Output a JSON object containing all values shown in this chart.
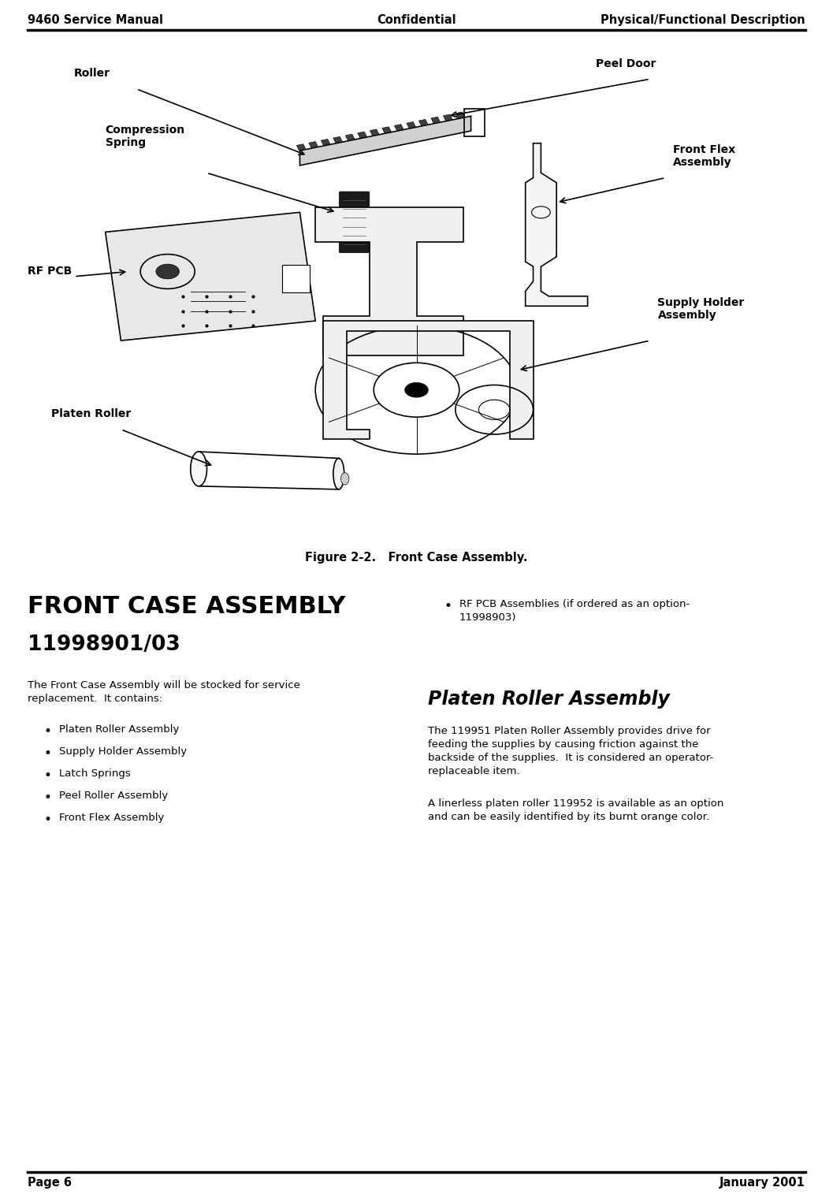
{
  "header_left": "9460 Service Manual",
  "header_center": "Confidential",
  "header_right": "Physical/Functional Description",
  "footer_left": "Page 6",
  "footer_right": "January 2001",
  "figure_caption": "Figure 2-2.   Front Case Assembly.",
  "section_title_line1": "FRONT CASE ASSEMBLY",
  "section_title_line2": "11998901/03",
  "intro_text": "The Front Case Assembly will be stocked for service\nreplacement.  It contains:",
  "bullet_items_left": [
    "Platen Roller Assembly",
    "Supply Holder Assembly",
    "Latch Springs",
    "Peel Roller Assembly",
    "Front Flex Assembly"
  ],
  "bullet_item_right": "RF PCB Assemblies (if ordered as an option-\n11998903)",
  "section2_title": "Platen Roller Assembly",
  "section2_para1": "The 119951 Platen Roller Assembly provides drive for\nfeeding the supplies by causing friction against the\nbackside of the supplies.  It is considered an operator-\nreplaceable item.",
  "section2_para2": "A linerless platen roller 119952 is available as an option\nand can be easily identified by its burnt orange color.",
  "bg_color": "#ffffff",
  "text_color": "#000000",
  "header_fontsize": 10.5,
  "body_fontsize": 9.5,
  "title_fontsize": 22,
  "subtitle_fontsize": 19,
  "section2_title_fontsize": 17,
  "diag_label_fontsize": 10,
  "caption_fontsize": 10.5
}
